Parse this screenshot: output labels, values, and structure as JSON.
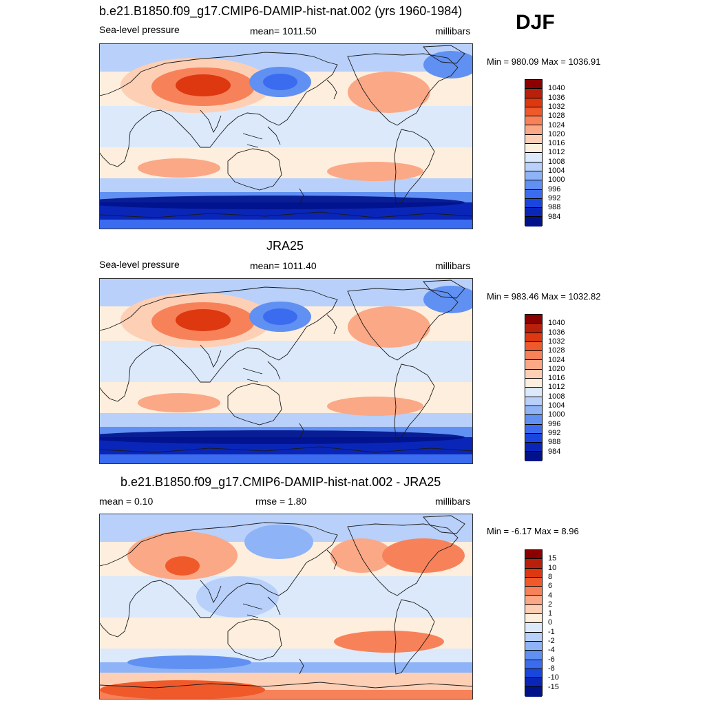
{
  "season": "DJF",
  "panels": [
    {
      "title": "b.e21.B1850.f09_g17.CMIP6-DAMIP-hist-nat.002 (yrs 1960-1984)",
      "left": "Sea-level pressure",
      "center": "mean= 1011.50",
      "right": "millibars",
      "minmax": "Min = 980.09 Max = 1036.91",
      "levels": [
        "1040",
        "1036",
        "1032",
        "1028",
        "1024",
        "1020",
        "1016",
        "1012",
        "1008",
        "1004",
        "1000",
        "996",
        "992",
        "988",
        "984"
      ],
      "colors": [
        "#8b0000",
        "#b8200b",
        "#dd3810",
        "#f05a2a",
        "#f7825a",
        "#fba886",
        "#fdd0b6",
        "#fdeedd",
        "#dbe9fb",
        "#b8d0fa",
        "#8eb3f7",
        "#6090f2",
        "#3b6cef",
        "#1a46e0",
        "#0a26b8",
        "#00128a"
      ],
      "mapdesc": "model"
    },
    {
      "title": "JRA25",
      "left": "Sea-level pressure",
      "center": "mean= 1011.40",
      "right": "millibars",
      "minmax": "Min = 983.46 Max = 1032.82",
      "levels": [
        "1040",
        "1036",
        "1032",
        "1028",
        "1024",
        "1020",
        "1016",
        "1012",
        "1008",
        "1004",
        "1000",
        "996",
        "992",
        "988",
        "984"
      ],
      "colors": [
        "#8b0000",
        "#b8200b",
        "#dd3810",
        "#f05a2a",
        "#f7825a",
        "#fba886",
        "#fdd0b6",
        "#fdeedd",
        "#dbe9fb",
        "#b8d0fa",
        "#8eb3f7",
        "#6090f2",
        "#3b6cef",
        "#1a46e0",
        "#0a26b8",
        "#00128a"
      ],
      "mapdesc": "obs"
    },
    {
      "title": "b.e21.B1850.f09_g17.CMIP6-DAMIP-hist-nat.002 - JRA25",
      "left": "mean =   0.10",
      "center": "rmse =   1.80",
      "right": "millibars",
      "minmax": "Min =  -6.17 Max =   8.96",
      "levels": [
        "15",
        "10",
        "8",
        "6",
        "4",
        "2",
        "1",
        "0",
        "-1",
        "-2",
        "-4",
        "-6",
        "-8",
        "-10",
        "-15"
      ],
      "colors": [
        "#8b0000",
        "#b8200b",
        "#dd3810",
        "#f05a2a",
        "#f7825a",
        "#fba886",
        "#fdd0b6",
        "#fdeedd",
        "#dbe9fb",
        "#b8d0fa",
        "#8eb3f7",
        "#6090f2",
        "#3b6cef",
        "#1a46e0",
        "#0a26b8",
        "#00128a"
      ],
      "mapdesc": "diff"
    }
  ]
}
